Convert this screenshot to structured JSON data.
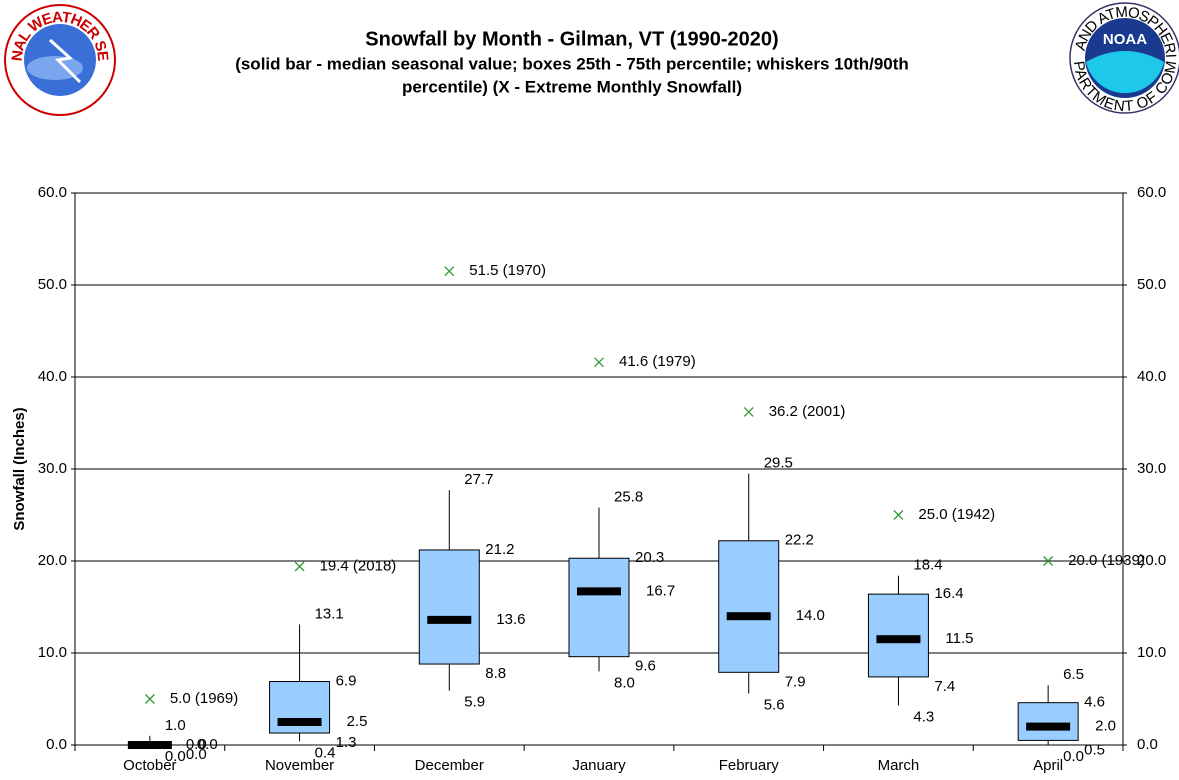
{
  "logos": {
    "left": "NATIONAL WEATHER SERVICE",
    "right": "NOAA",
    "right_top": "NATIONAL OCEANIC AND ATMOSPHERIC ADMINISTRATION",
    "right_bottom": "U.S. DEPARTMENT OF COMMERCE"
  },
  "chart_data": {
    "type": "box",
    "title": "Snowfall by Month - Gilman, VT (1990-2020)",
    "subtitle": [
      "(solid bar - median seasonal value; boxes 25th - 75th percentile; whiskers 10th/90th",
      "percentile) (X - Extreme Monthly Snowfall)"
    ],
    "ylabel": "Snowfall (Inches)",
    "categories": [
      "October",
      "November",
      "December",
      "January",
      "February",
      "March",
      "April"
    ],
    "p10": {
      "values": [
        0,
        0.4,
        5.9,
        8,
        5.6,
        4.3,
        0
      ],
      "value_labels": [
        "0.0",
        "0.4",
        "5.9",
        "8.0",
        "5.6",
        "4.3",
        "0.0"
      ]
    },
    "p25": {
      "values": [
        0,
        1.3,
        8.8,
        9.6,
        7.9,
        7.4,
        0.5
      ],
      "value_labels": [
        "0.0",
        "1.3",
        "8.8",
        "9.6",
        "7.9",
        "7.4",
        "0.5"
      ]
    },
    "median": {
      "values": [
        0,
        2.5,
        13.6,
        16.7,
        14,
        11.5,
        2
      ],
      "value_labels": [
        "0.0",
        "2.5",
        "13.6",
        "16.7",
        "14.0",
        "11.5",
        "2.0"
      ]
    },
    "p75": {
      "values": [
        0,
        6.9,
        21.2,
        20.3,
        22.2,
        16.4,
        4.6
      ],
      "value_labels": [
        "0.0",
        "6.9",
        "21.2",
        "20.3",
        "22.2",
        "16.4",
        "4.6"
      ]
    },
    "p90": {
      "values": [
        1,
        13.1,
        27.7,
        25.8,
        29.5,
        18.4,
        6.5
      ],
      "value_labels": [
        "1.0",
        "13.1",
        "27.7",
        "25.8",
        "29.5",
        "18.4",
        "6.5"
      ]
    },
    "extreme": {
      "values": [
        5,
        19.4,
        51.5,
        41.6,
        36.2,
        25,
        20
      ],
      "value_labels": [
        "5.0 (1969)",
        "19.4 (2018)",
        "51.5 (1970)",
        "41.6 (1979)",
        "36.2 (2001)",
        "25.0 (1942)",
        "20.0 (1939)"
      ]
    },
    "box_color": "#99ccff",
    "extreme_color": "#339933",
    "ylim": [
      0,
      60
    ],
    "yticks": [
      {
        "value": 0,
        "label": "0.0"
      },
      {
        "value": 10,
        "label": "10.0"
      },
      {
        "value": 20,
        "label": "20.0"
      },
      {
        "value": 30,
        "label": "30.0"
      },
      {
        "value": 40,
        "label": "40.0"
      },
      {
        "value": 50,
        "label": "50.0"
      },
      {
        "value": 60,
        "label": "60.0"
      }
    ],
    "grid": true
  }
}
